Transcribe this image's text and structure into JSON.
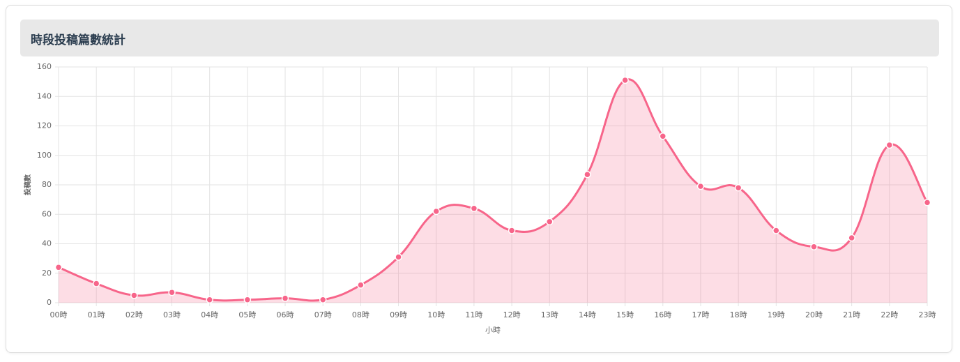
{
  "title": "時段投稿篇數統計",
  "chart_data": {
    "type": "line",
    "categories": [
      "00時",
      "01時",
      "02時",
      "03時",
      "04時",
      "05時",
      "06時",
      "07時",
      "08時",
      "09時",
      "10時",
      "11時",
      "12時",
      "13時",
      "14時",
      "15時",
      "16時",
      "17時",
      "18時",
      "19時",
      "20時",
      "21時",
      "22時",
      "23時"
    ],
    "series": [
      {
        "color": "#f7658a",
        "values": [
          24,
          13,
          5,
          7,
          2,
          2,
          3,
          2,
          12,
          31,
          62,
          64,
          49,
          55,
          87,
          151,
          113,
          79,
          78,
          49,
          38,
          44,
          107,
          68
        ]
      }
    ],
    "x_label": "小時",
    "y_label": "投稿數",
    "ylim": [
      0,
      160
    ],
    "yticks": [
      0,
      20,
      40,
      60,
      80,
      100,
      120,
      140,
      160
    ],
    "grid": true,
    "fill": true
  }
}
